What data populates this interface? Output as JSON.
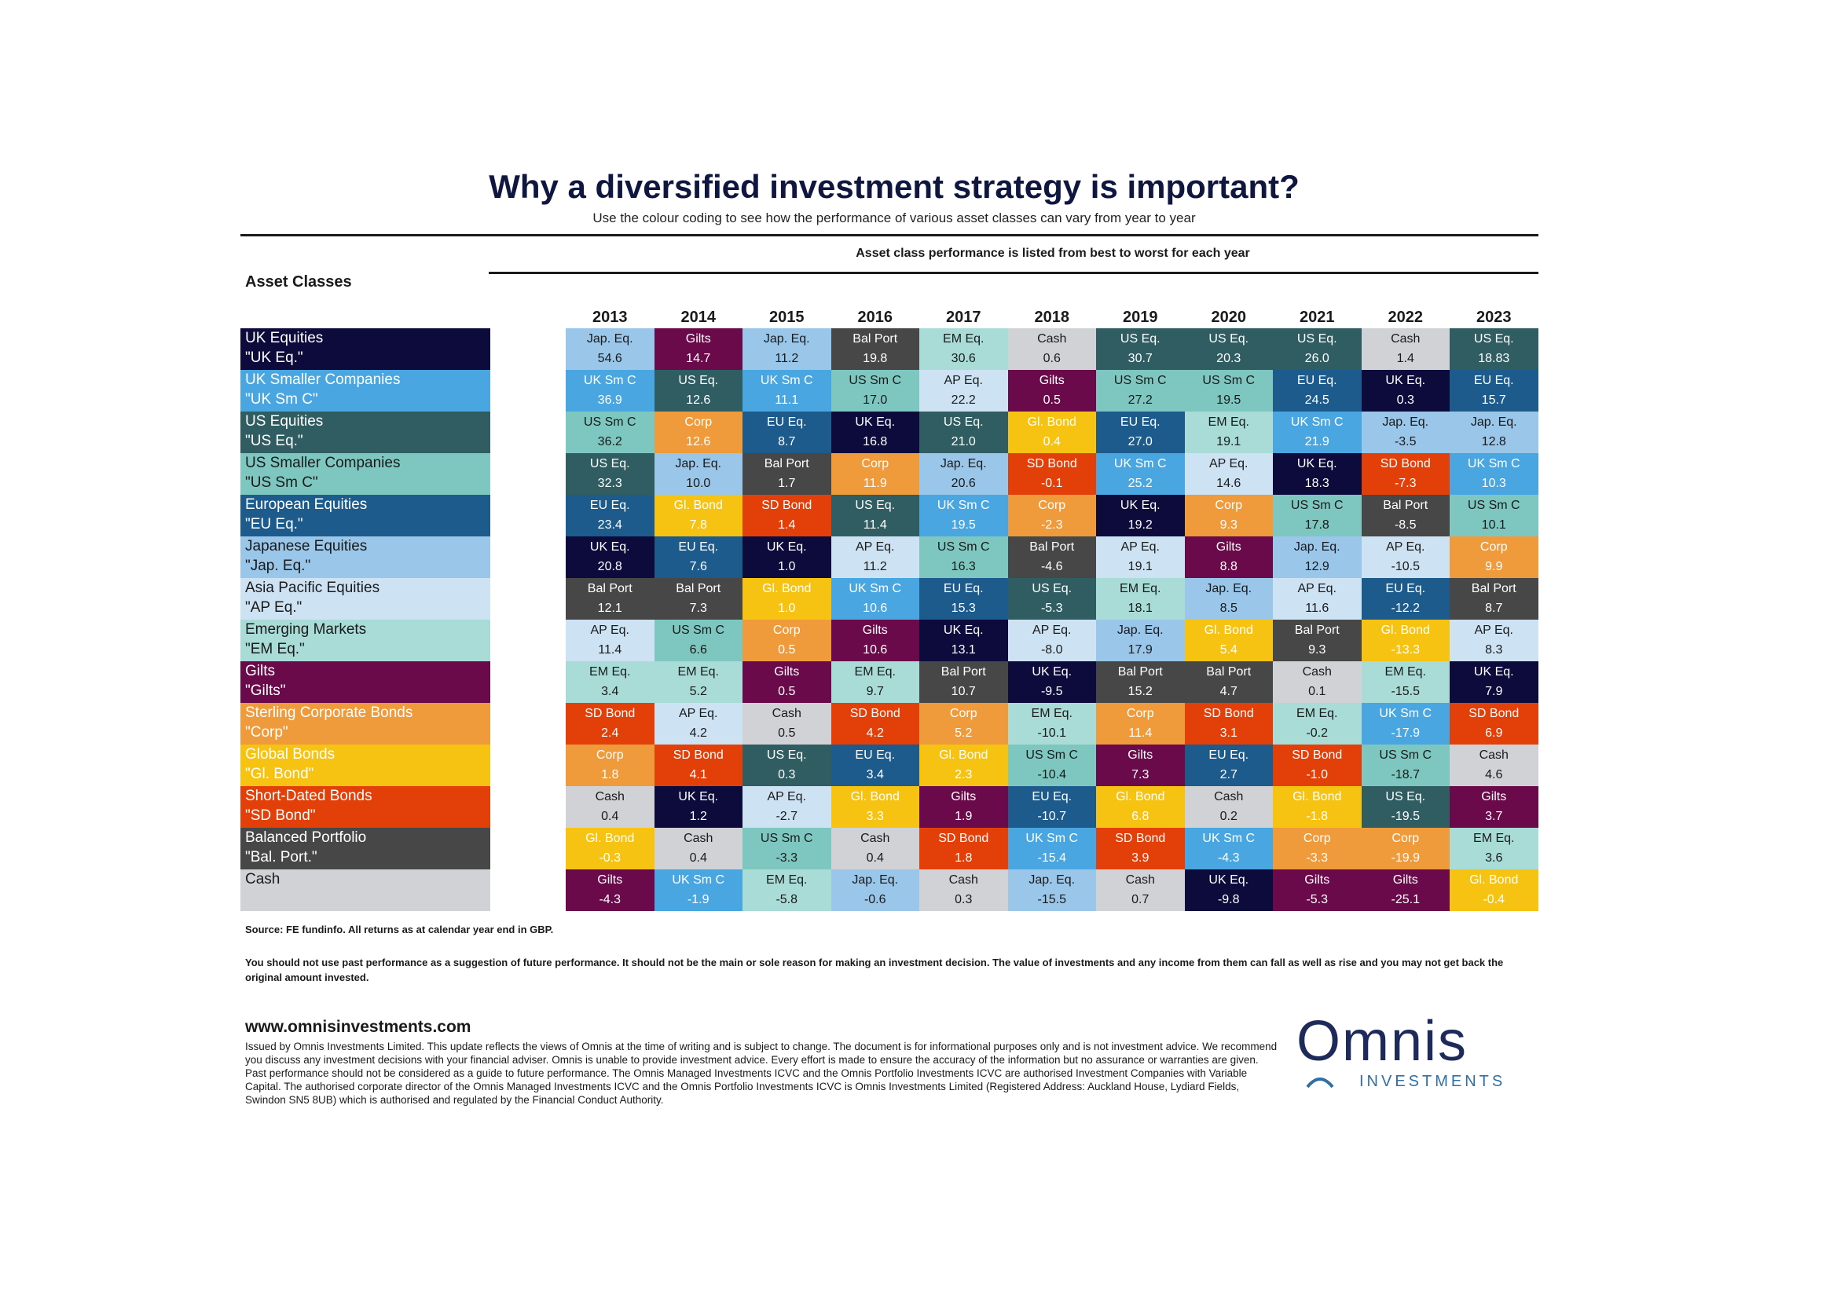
{
  "header": {
    "title": "Why a diversified investment strategy is important?",
    "subtitle": "Use the colour coding to see how the performance of various asset classes can vary from year to year",
    "note": "Asset class performance is listed from best to worst for each year",
    "asset_classes_heading": "Asset Classes"
  },
  "colors": {
    "UK Eq.": "#0c0b3b",
    "UK Sm C": "#4aa6e0",
    "US Eq.": "#2f5d62",
    "US Sm C": "#7ec7c0",
    "EU Eq.": "#1d5b8c",
    "Jap. Eq.": "#9ac6ea",
    "AP Eq.": "#cde3f4",
    "EM Eq.": "#a9dcd7",
    "Gilts": "#6a0a4a",
    "Corp": "#ef9b3c",
    "Gl. Bond": "#f7c313",
    "SD Bond": "#e33f08",
    "Bal Port": "#474747",
    "Cash": "#d1d2d6"
  },
  "legend": [
    {
      "name": "UK Equities",
      "abbr": "\"UK Eq.\"",
      "key": "UK Eq."
    },
    {
      "name": "UK Smaller Companies",
      "abbr": "\"UK Sm C\"",
      "key": "UK Sm C"
    },
    {
      "name": "US Equities",
      "abbr": "\"US Eq.\"",
      "key": "US Eq."
    },
    {
      "name": "US Smaller Companies",
      "abbr": "\"US Sm C\"",
      "key": "US Sm C"
    },
    {
      "name": "European Equities",
      "abbr": "\"EU Eq.\"",
      "key": "EU Eq."
    },
    {
      "name": "Japanese Equities",
      "abbr": "\"Jap. Eq.\"",
      "key": "Jap. Eq."
    },
    {
      "name": "Asia Pacific Equities",
      "abbr": "\"AP Eq.\"",
      "key": "AP Eq."
    },
    {
      "name": "Emerging Markets",
      "abbr": "\"EM Eq.\"",
      "key": "EM Eq."
    },
    {
      "name": "Gilts",
      "abbr": "\"Gilts\"",
      "key": "Gilts"
    },
    {
      "name": "Sterling Corporate Bonds",
      "abbr": "\"Corp\"",
      "key": "Corp"
    },
    {
      "name": "Global Bonds",
      "abbr": "\"Gl. Bond\"",
      "key": "Gl. Bond"
    },
    {
      "name": "Short-Dated Bonds",
      "abbr": "\"SD Bond\"",
      "key": "SD Bond"
    },
    {
      "name": "Balanced Portfolio",
      "abbr": "\"Bal. Port.\"",
      "key": "Bal Port"
    },
    {
      "name": "Cash",
      "abbr": "",
      "key": "Cash"
    }
  ],
  "years": [
    {
      "year": "2013",
      "cells": [
        {
          "a": "Jap. Eq.",
          "v": "54.6"
        },
        {
          "a": "UK Sm C",
          "v": "36.9"
        },
        {
          "a": "US Sm C",
          "v": "36.2"
        },
        {
          "a": "US Eq.",
          "v": "32.3"
        },
        {
          "a": "EU Eq.",
          "v": "23.4"
        },
        {
          "a": "UK Eq.",
          "v": "20.8"
        },
        {
          "a": "Bal Port",
          "v": "12.1"
        },
        {
          "a": "AP Eq.",
          "v": "11.4"
        },
        {
          "a": "EM Eq.",
          "v": "3.4"
        },
        {
          "a": "SD Bond",
          "v": "2.4"
        },
        {
          "a": "Corp",
          "v": "1.8"
        },
        {
          "a": "Cash",
          "v": "0.4"
        },
        {
          "a": "Gl. Bond",
          "v": "-0.3"
        },
        {
          "a": "Gilts",
          "v": "-4.3"
        }
      ]
    },
    {
      "year": "2014",
      "cells": [
        {
          "a": "Gilts",
          "v": "14.7"
        },
        {
          "a": "US Eq.",
          "v": "12.6"
        },
        {
          "a": "Corp",
          "v": "12.6"
        },
        {
          "a": "Jap. Eq.",
          "v": "10.0"
        },
        {
          "a": "Gl. Bond",
          "v": "7.8"
        },
        {
          "a": "EU Eq.",
          "v": "7.6"
        },
        {
          "a": "Bal Port",
          "v": "7.3"
        },
        {
          "a": "US Sm C",
          "v": "6.6"
        },
        {
          "a": "EM Eq.",
          "v": "5.2"
        },
        {
          "a": "AP Eq.",
          "v": "4.2"
        },
        {
          "a": "SD Bond",
          "v": "4.1"
        },
        {
          "a": "UK Eq.",
          "v": "1.2"
        },
        {
          "a": "Cash",
          "v": "0.4"
        },
        {
          "a": "UK Sm C",
          "v": "-1.9"
        }
      ]
    },
    {
      "year": "2015",
      "cells": [
        {
          "a": "Jap. Eq.",
          "v": "11.2"
        },
        {
          "a": "UK Sm C",
          "v": "11.1"
        },
        {
          "a": "EU Eq.",
          "v": "8.7"
        },
        {
          "a": "Bal Port",
          "v": "1.7"
        },
        {
          "a": "SD Bond",
          "v": "1.4"
        },
        {
          "a": "UK Eq.",
          "v": "1.0"
        },
        {
          "a": "Gl. Bond",
          "v": "1.0"
        },
        {
          "a": "Corp",
          "v": "0.5"
        },
        {
          "a": "Gilts",
          "v": "0.5"
        },
        {
          "a": "Cash",
          "v": "0.5"
        },
        {
          "a": "US Eq.",
          "v": "0.3"
        },
        {
          "a": "AP Eq.",
          "v": "-2.7"
        },
        {
          "a": "US Sm C",
          "v": "-3.3"
        },
        {
          "a": "EM Eq.",
          "v": "-5.8"
        }
      ]
    },
    {
      "year": "2016",
      "cells": [
        {
          "a": "Bal Port",
          "v": "19.8"
        },
        {
          "a": "US Sm C",
          "v": "17.0"
        },
        {
          "a": "UK Eq.",
          "v": "16.8"
        },
        {
          "a": "Corp",
          "v": "11.9"
        },
        {
          "a": "US Eq.",
          "v": "11.4"
        },
        {
          "a": "AP Eq.",
          "v": "11.2"
        },
        {
          "a": "UK Sm C",
          "v": "10.6"
        },
        {
          "a": "Gilts",
          "v": "10.6"
        },
        {
          "a": "EM Eq.",
          "v": "9.7"
        },
        {
          "a": "SD Bond",
          "v": "4.2"
        },
        {
          "a": "EU Eq.",
          "v": "3.4"
        },
        {
          "a": "Gl. Bond",
          "v": "3.3"
        },
        {
          "a": "Cash",
          "v": "0.4"
        },
        {
          "a": "Jap. Eq.",
          "v": "-0.6"
        }
      ]
    },
    {
      "year": "2017",
      "cells": [
        {
          "a": "EM Eq.",
          "v": "30.6"
        },
        {
          "a": "AP Eq.",
          "v": "22.2"
        },
        {
          "a": "US Eq.",
          "v": "21.0"
        },
        {
          "a": "Jap. Eq.",
          "v": "20.6"
        },
        {
          "a": "UK Sm C",
          "v": "19.5"
        },
        {
          "a": "US Sm C",
          "v": "16.3"
        },
        {
          "a": "EU Eq.",
          "v": "15.3"
        },
        {
          "a": "UK Eq.",
          "v": "13.1"
        },
        {
          "a": "Bal Port",
          "v": "10.7"
        },
        {
          "a": "Corp",
          "v": "5.2"
        },
        {
          "a": "Gl. Bond",
          "v": "2.3"
        },
        {
          "a": "Gilts",
          "v": "1.9"
        },
        {
          "a": "SD Bond",
          "v": "1.8"
        },
        {
          "a": "Cash",
          "v": "0.3"
        }
      ]
    },
    {
      "year": "2018",
      "cells": [
        {
          "a": "Cash",
          "v": "0.6"
        },
        {
          "a": "Gilts",
          "v": "0.5"
        },
        {
          "a": "Gl. Bond",
          "v": "0.4"
        },
        {
          "a": "SD Bond",
          "v": "-0.1"
        },
        {
          "a": "Corp",
          "v": "-2.3"
        },
        {
          "a": "Bal Port",
          "v": "-4.6"
        },
        {
          "a": "US Eq.",
          "v": "-5.3"
        },
        {
          "a": "AP Eq.",
          "v": "-8.0"
        },
        {
          "a": "UK Eq.",
          "v": "-9.5"
        },
        {
          "a": "EM Eq.",
          "v": "-10.1"
        },
        {
          "a": "US Sm C",
          "v": "-10.4"
        },
        {
          "a": "EU Eq.",
          "v": "-10.7"
        },
        {
          "a": "UK Sm C",
          "v": "-15.4"
        },
        {
          "a": "Jap. Eq.",
          "v": "-15.5"
        }
      ]
    },
    {
      "year": "2019",
      "cells": [
        {
          "a": "US Eq.",
          "v": "30.7"
        },
        {
          "a": "US Sm C",
          "v": "27.2"
        },
        {
          "a": "EU Eq.",
          "v": "27.0"
        },
        {
          "a": "UK Sm C",
          "v": "25.2"
        },
        {
          "a": "UK Eq.",
          "v": "19.2"
        },
        {
          "a": "AP Eq.",
          "v": "19.1"
        },
        {
          "a": "EM Eq.",
          "v": "18.1"
        },
        {
          "a": "Jap. Eq.",
          "v": "17.9"
        },
        {
          "a": "Bal Port",
          "v": "15.2"
        },
        {
          "a": "Corp",
          "v": "11.4"
        },
        {
          "a": "Gilts",
          "v": "7.3"
        },
        {
          "a": "Gl. Bond",
          "v": "6.8"
        },
        {
          "a": "SD Bond",
          "v": "3.9"
        },
        {
          "a": "Cash",
          "v": "0.7"
        }
      ]
    },
    {
      "year": "2020",
      "cells": [
        {
          "a": "US Eq.",
          "v": "20.3"
        },
        {
          "a": "US Sm C",
          "v": "19.5"
        },
        {
          "a": "EM Eq.",
          "v": "19.1"
        },
        {
          "a": "AP Eq.",
          "v": "14.6"
        },
        {
          "a": "Corp",
          "v": "9.3"
        },
        {
          "a": "Gilts",
          "v": "8.8"
        },
        {
          "a": "Jap. Eq.",
          "v": "8.5"
        },
        {
          "a": "Gl. Bond",
          "v": "5.4"
        },
        {
          "a": "Bal Port",
          "v": "4.7"
        },
        {
          "a": "SD Bond",
          "v": "3.1"
        },
        {
          "a": "EU Eq.",
          "v": "2.7"
        },
        {
          "a": "Cash",
          "v": "0.2"
        },
        {
          "a": "UK Sm C",
          "v": "-4.3"
        },
        {
          "a": "UK Eq.",
          "v": "-9.8"
        }
      ]
    },
    {
      "year": "2021",
      "cells": [
        {
          "a": "US Eq.",
          "v": "26.0"
        },
        {
          "a": "EU Eq.",
          "v": "24.5"
        },
        {
          "a": "UK Sm C",
          "v": "21.9"
        },
        {
          "a": "UK Eq.",
          "v": "18.3"
        },
        {
          "a": "US Sm C",
          "v": "17.8"
        },
        {
          "a": "Jap. Eq.",
          "v": "12.9"
        },
        {
          "a": "AP Eq.",
          "v": "11.6"
        },
        {
          "a": "Bal Port",
          "v": "9.3"
        },
        {
          "a": "Cash",
          "v": "0.1"
        },
        {
          "a": "EM Eq.",
          "v": "-0.2"
        },
        {
          "a": "SD Bond",
          "v": "-1.0"
        },
        {
          "a": "Gl. Bond",
          "v": "-1.8"
        },
        {
          "a": "Corp",
          "v": "-3.3"
        },
        {
          "a": "Gilts",
          "v": "-5.3"
        }
      ]
    },
    {
      "year": "2022",
      "cells": [
        {
          "a": "Cash",
          "v": "1.4"
        },
        {
          "a": "UK Eq.",
          "v": "0.3"
        },
        {
          "a": "Jap. Eq.",
          "v": "-3.5"
        },
        {
          "a": "SD Bond",
          "v": "-7.3"
        },
        {
          "a": "Bal Port",
          "v": "-8.5"
        },
        {
          "a": "AP Eq.",
          "v": "-10.5"
        },
        {
          "a": "EU Eq.",
          "v": "-12.2"
        },
        {
          "a": "Gl. Bond",
          "v": "-13.3"
        },
        {
          "a": "EM Eq.",
          "v": "-15.5"
        },
        {
          "a": "UK Sm C",
          "v": "-17.9"
        },
        {
          "a": "US Sm C",
          "v": "-18.7"
        },
        {
          "a": "US Eq.",
          "v": "-19.5"
        },
        {
          "a": "Corp",
          "v": "-19.9"
        },
        {
          "a": "Gilts",
          "v": "-25.1"
        }
      ]
    },
    {
      "year": "2023",
      "cells": [
        {
          "a": "US Eq.",
          "v": "18.83"
        },
        {
          "a": "EU Eq.",
          "v": "15.7"
        },
        {
          "a": "Jap. Eq.",
          "v": "12.8"
        },
        {
          "a": "UK Sm C",
          "v": "10.3"
        },
        {
          "a": "US Sm C",
          "v": "10.1"
        },
        {
          "a": "Corp",
          "v": "9.9"
        },
        {
          "a": "Bal Port",
          "v": "8.7"
        },
        {
          "a": "AP Eq.",
          "v": "8.3"
        },
        {
          "a": "UK Eq.",
          "v": "7.9"
        },
        {
          "a": "SD Bond",
          "v": "6.9"
        },
        {
          "a": "Cash",
          "v": "4.6"
        },
        {
          "a": "Gilts",
          "v": "3.7"
        },
        {
          "a": "EM Eq.",
          "v": "3.6"
        },
        {
          "a": "Gl. Bond",
          "v": "-0.4"
        }
      ]
    }
  ],
  "footer": {
    "source": "Source: FE fundinfo. All returns as at calendar year end in GBP.",
    "disclaimer": "You should not use past performance as a suggestion of future performance. It should not be the main or sole reason for making an investment decision. The value of investments and any income from them can fall as well as rise and you may not get back the original amount invested.",
    "website": "www.omnisinvestments.com",
    "issued": "Issued by Omnis Investments Limited. This update reflects the views of Omnis at the time of writing and is subject to change. The document is for informational purposes only and is not investment advice. We recommend you discuss any investment decisions with your financial adviser. Omnis is unable to provide investment advice. Every effort is made to ensure the accuracy of the information but no assurance or warranties are given. Past performance should not be considered as a guide to future performance. The Omnis Managed Investments ICVC and the Omnis Portfolio Investments ICVC are authorised Investment Companies with Variable Capital. The authorised corporate director of the Omnis Managed Investments ICVC and the Omnis Portfolio Investments ICVC is Omnis Investments Limited (Registered Address: Auckland House, Lydiard Fields, Swindon SN5 8UB) which is authorised and regulated by the Financial Conduct Authority."
  },
  "logo": {
    "word": "Omnis",
    "sub": "INVESTMENTS"
  }
}
